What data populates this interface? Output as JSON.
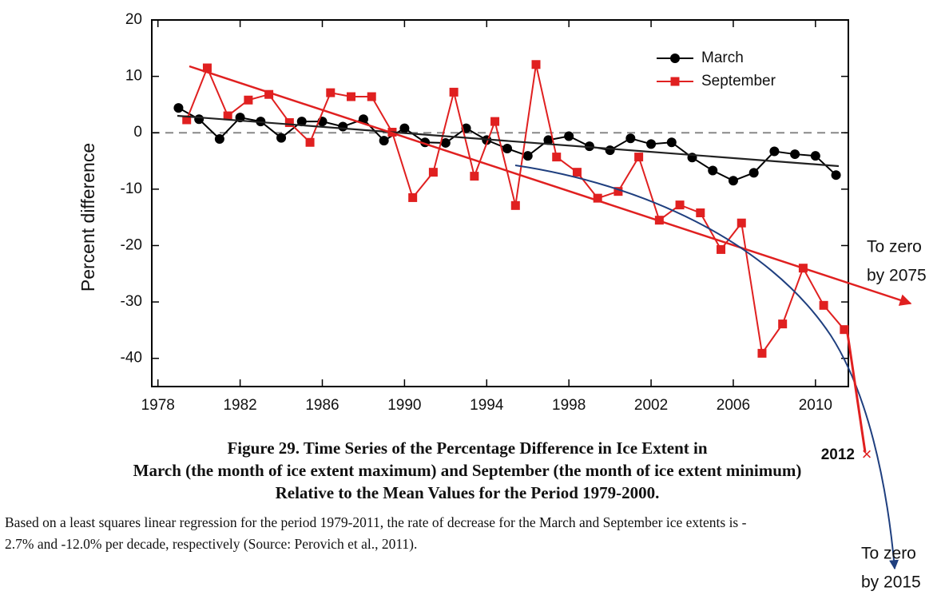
{
  "chart_data": {
    "type": "line",
    "ylabel": "Percent difference",
    "xlim": [
      1977.7,
      2011.6
    ],
    "xticks": [
      1978,
      1982,
      1986,
      1990,
      1994,
      1998,
      2002,
      2006,
      2010
    ],
    "ylim": [
      -45,
      20
    ],
    "yticks": [
      -40,
      -30,
      -20,
      -10,
      0,
      10,
      20
    ],
    "zero_line": true,
    "legend": "upper right",
    "series": [
      {
        "name": "March",
        "color": "#000000",
        "marker": "circle",
        "x": [
          1979,
          1980,
          1981,
          1982,
          1983,
          1984,
          1985,
          1986,
          1987,
          1988,
          1989,
          1990,
          1991,
          1992,
          1993,
          1994,
          1995,
          1996,
          1997,
          1998,
          1999,
          2000,
          2001,
          2002,
          2003,
          2004,
          2005,
          2006,
          2007,
          2008,
          2009,
          2010,
          2011
        ],
        "values": [
          4.4,
          2.4,
          -1.1,
          2.7,
          2.0,
          -0.9,
          2.0,
          2.0,
          1.1,
          2.4,
          -1.4,
          0.8,
          -1.7,
          -1.8,
          0.8,
          -1.3,
          -2.8,
          -4.1,
          -1.3,
          -0.6,
          -2.4,
          -3.1,
          -1.0,
          -2.0,
          -1.7,
          -4.4,
          -6.7,
          -8.5,
          -7.1,
          -3.3,
          -3.8,
          -4.1,
          -7.5
        ]
      },
      {
        "name": "September",
        "color": "#e02020",
        "marker": "square",
        "x": [
          1979.4,
          1980.4,
          1981.4,
          1982.4,
          1983.4,
          1984.4,
          1985.4,
          1986.4,
          1987.4,
          1988.4,
          1989.4,
          1990.4,
          1991.4,
          1992.4,
          1993.4,
          1994.4,
          1995.4,
          1996.4,
          1997.4,
          1998.4,
          1999.4,
          2000.4,
          2001.4,
          2002.4,
          2003.4,
          2004.4,
          2005.4,
          2006.4,
          2007.4,
          2008.4,
          2009.4,
          2010.4,
          2011.4
        ],
        "values": [
          2.3,
          11.5,
          3.0,
          5.8,
          6.8,
          1.8,
          -1.7,
          7.1,
          6.4,
          6.4,
          0.1,
          -11.5,
          -7.0,
          7.2,
          -7.7,
          2.0,
          -12.9,
          12.1,
          -4.3,
          -7.0,
          -11.6,
          -10.4,
          -4.3,
          -15.5,
          -12.8,
          -14.2,
          -20.7,
          -16.0,
          -39.1,
          -33.9,
          -24.0,
          -30.6,
          -34.9
        ]
      }
    ],
    "annotations": [
      {
        "lines": [
          "To zero",
          "by 2075"
        ],
        "color": "#e02020"
      },
      {
        "lines": [
          "To zero",
          "by 2015"
        ],
        "color": "#1f3f7f"
      },
      {
        "text": "2012",
        "mark": "x"
      }
    ],
    "caption": [
      "Figure 29. Time Series of the Percentage Difference in Ice Extent in",
      "March (the month of ice extent maximum) and September (the month of ice extent minimum)",
      "Relative to the Mean Values for the Period 1979-2000."
    ],
    "note": [
      "Based on a least squares linear regression for the period 1979-2011, the rate of decrease for the March and September ice extents is -",
      "2.7% and -12.0% per decade, respectively (Source: Perovich et al., 2011)."
    ]
  }
}
